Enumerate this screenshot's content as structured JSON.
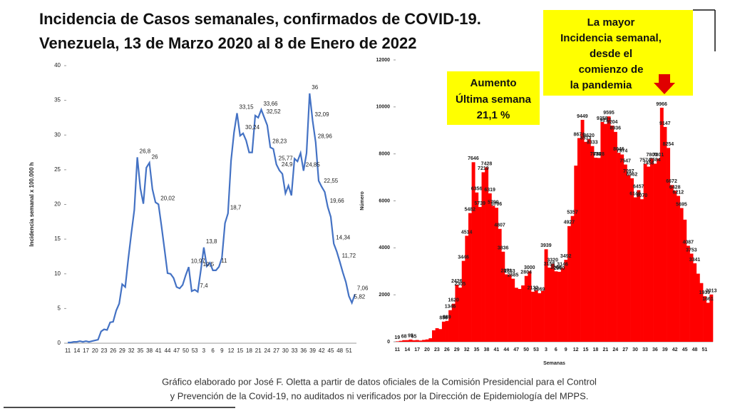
{
  "header": {
    "title": [
      "Incidencia de Casos semanales, confirmados de COVID-19.",
      "Venezuela,  13 de Marzo 2020 al 8 de Enero de 2022"
    ]
  },
  "chart_data": [
    {
      "type": "line",
      "y_label": "Incidencia semanal x 100.000 h",
      "color": "#4472c4",
      "categories": [
        11,
        null,
        null,
        14,
        null,
        null,
        17,
        null,
        null,
        20,
        null,
        null,
        23,
        null,
        null,
        26,
        null,
        null,
        29,
        null,
        null,
        32,
        null,
        null,
        35,
        null,
        null,
        38,
        null,
        null,
        41,
        null,
        null,
        44,
        null,
        null,
        47,
        null,
        null,
        50,
        null,
        null,
        53,
        null,
        null,
        3,
        null,
        null,
        6,
        null,
        null,
        9,
        null,
        null,
        12,
        null,
        null,
        15,
        null,
        null,
        18,
        null,
        null,
        21,
        null,
        null,
        24,
        null,
        null,
        27,
        null,
        null,
        30,
        null,
        null,
        33,
        null,
        null,
        36,
        null,
        null,
        39,
        null,
        null,
        42,
        null,
        null,
        45,
        null,
        null,
        48,
        null,
        null,
        51,
        null,
        null
      ],
      "values": [
        0.1,
        0.1,
        0.2,
        0.2,
        0.3,
        0.2,
        0.3,
        0.2,
        0.3,
        0.4,
        0.5,
        1.7,
        2,
        1.9,
        3,
        3.1,
        4.7,
        5.7,
        8.5,
        8.1,
        12.1,
        15.8,
        19.2,
        26.8,
        22.3,
        20.1,
        25.3,
        26,
        22.2,
        20.3,
        20.02,
        16.9,
        13.5,
        10.1,
        10,
        9.4,
        8.1,
        7.9,
        8.4,
        9.8,
        10.97,
        7.5,
        7.7,
        7.4,
        10.5,
        13.8,
        11.1,
        11.6,
        10.5,
        10.5,
        11,
        12.3,
        17.3,
        18.7,
        26.3,
        30.4,
        33.15,
        29.9,
        30.24,
        29.2,
        27.5,
        27.5,
        32.8,
        32.5,
        33.66,
        32.52,
        31.4,
        28.23,
        28,
        25.77,
        24.9,
        24.4,
        21.6,
        22.7,
        21.3,
        26.6,
        26.2,
        27.4,
        24.85,
        27.4,
        36,
        32.09,
        28.96,
        23.4,
        22.55,
        21.8,
        19.66,
        18.2,
        14.34,
        13.2,
        11.72,
        10.2,
        8.8,
        6.8,
        5.82,
        7.06
      ],
      "value_labels": [
        null,
        null,
        null,
        null,
        null,
        null,
        null,
        null,
        null,
        null,
        null,
        null,
        null,
        null,
        null,
        null,
        null,
        null,
        null,
        null,
        null,
        null,
        null,
        "26,8",
        null,
        null,
        null,
        "26",
        null,
        null,
        "20,02",
        null,
        null,
        null,
        null,
        null,
        null,
        null,
        null,
        null,
        "10,97",
        null,
        null,
        "7,4",
        "10,5",
        "13,8",
        null,
        null,
        null,
        null,
        "11",
        null,
        null,
        "18,7",
        null,
        null,
        "33,15",
        null,
        "30,24",
        null,
        null,
        null,
        null,
        null,
        "33,66",
        "32,52",
        null,
        "28,23",
        null,
        "25,77",
        "24,9",
        null,
        null,
        null,
        null,
        null,
        null,
        null,
        "24,85",
        null,
        "36",
        "32,09",
        "28,96",
        null,
        "22,55",
        null,
        "19,66",
        null,
        "14,34",
        null,
        "11,72",
        null,
        null,
        null,
        "5,82",
        "7,06"
      ],
      "ylim": [
        0,
        40
      ],
      "yticks": [
        0,
        5,
        10,
        15,
        20,
        25,
        30,
        35,
        40
      ]
    },
    {
      "type": "bar",
      "y_label": "Número",
      "x_label": "Semanas",
      "color": "#ff0000",
      "categories": [
        11,
        null,
        null,
        14,
        null,
        null,
        17,
        null,
        null,
        20,
        null,
        null,
        23,
        null,
        null,
        26,
        null,
        null,
        29,
        null,
        null,
        32,
        null,
        null,
        35,
        null,
        null,
        38,
        null,
        null,
        41,
        null,
        null,
        44,
        null,
        null,
        47,
        null,
        null,
        50,
        null,
        null,
        53,
        null,
        null,
        3,
        null,
        null,
        6,
        null,
        null,
        9,
        null,
        null,
        12,
        null,
        null,
        15,
        null,
        null,
        18,
        null,
        null,
        21,
        null,
        null,
        24,
        null,
        null,
        27,
        null,
        null,
        30,
        null,
        null,
        33,
        null,
        null,
        36,
        null,
        null,
        39,
        null,
        null,
        42,
        null,
        null,
        45,
        null,
        null,
        48,
        null,
        null,
        51,
        null,
        null
      ],
      "values": [
        19,
        40,
        68,
        70,
        95,
        65,
        75,
        53,
        80,
        100,
        150,
        490,
        580,
        540,
        858,
        889,
        1346,
        1620,
        2426,
        2305,
        3446,
        4514,
        5482,
        7646,
        6356,
        5739,
        7219,
        7428,
        6319,
        5790,
        5706,
        4807,
        3836,
        2871,
        2853,
        2685,
        2300,
        2250,
        2400,
        2804,
        3000,
        2132,
        2200,
        2069,
        2170,
        3939,
        3158,
        3320,
        3000,
        2980,
        3146,
        3492,
        4927,
        5357,
        7500,
        8674,
        9449,
        8513,
        8620,
        8333,
        7838,
        7828,
        9358,
        9277,
        9595,
        9204,
        8936,
        8046,
        7974,
        7547,
        7097,
        6962,
        6149,
        6457,
        6070,
        7574,
        7458,
        7800,
        7584,
        7801,
        9966,
        9147,
        8254,
        6672,
        6428,
        6212,
        5695,
        5200,
        4087,
        3753,
        3341,
        2900,
        2500,
        1939,
        1661,
        2013
      ],
      "value_labels": [
        "19",
        null,
        "68",
        null,
        "95",
        "65",
        null,
        null,
        null,
        null,
        null,
        null,
        null,
        null,
        "858",
        "889",
        "1346",
        "1620",
        "2426",
        "2305",
        "3446",
        "4514",
        "5482",
        "7646",
        "6356",
        "5739",
        "7219",
        "7428",
        "6319",
        "5790",
        "5706",
        "4807",
        "3836",
        "2871",
        "2853",
        "2685",
        null,
        null,
        null,
        "2804",
        "3000",
        "2132",
        null,
        "2069",
        null,
        "3939",
        "3158",
        "3320",
        "3000",
        "2980",
        "3146",
        "3492",
        "4927",
        "5357",
        null,
        "8674",
        "9449",
        "8513",
        "8620",
        "8333",
        "7838",
        "7828",
        "9358",
        "9277",
        "9595",
        "9204",
        "8936",
        "8046",
        "7974",
        "7547",
        "7097",
        "6962",
        "6149",
        "6457",
        "6070",
        "7574",
        "7458",
        "7800",
        "7584",
        "7801",
        "9966",
        "9147",
        "8254",
        "6672",
        "6428",
        "6212",
        "5695",
        null,
        "4087",
        "3753",
        "3341",
        null,
        null,
        "1939",
        "1661",
        "2013"
      ],
      "ylim": [
        0,
        12000
      ],
      "yticks": [
        0,
        2000,
        4000,
        6000,
        8000,
        10000,
        12000
      ],
      "annotations": [
        {
          "lines": [
            "Aumento",
            "Última semana",
            "21,1 %"
          ]
        },
        {
          "lines": [
            "La mayor",
            "Incidencia semanal,",
            "desde el",
            "comienzo de",
            "la pandemia"
          ]
        }
      ]
    }
  ],
  "footer": [
    "Gráfico elaborado por José F. Oletta a partir de datos oficiales de la Comisión Presidencial para el Control",
    "y Prevención de la Covid-19, no auditados ni verificados por la Dirección de Epidemiología del MPPS."
  ]
}
